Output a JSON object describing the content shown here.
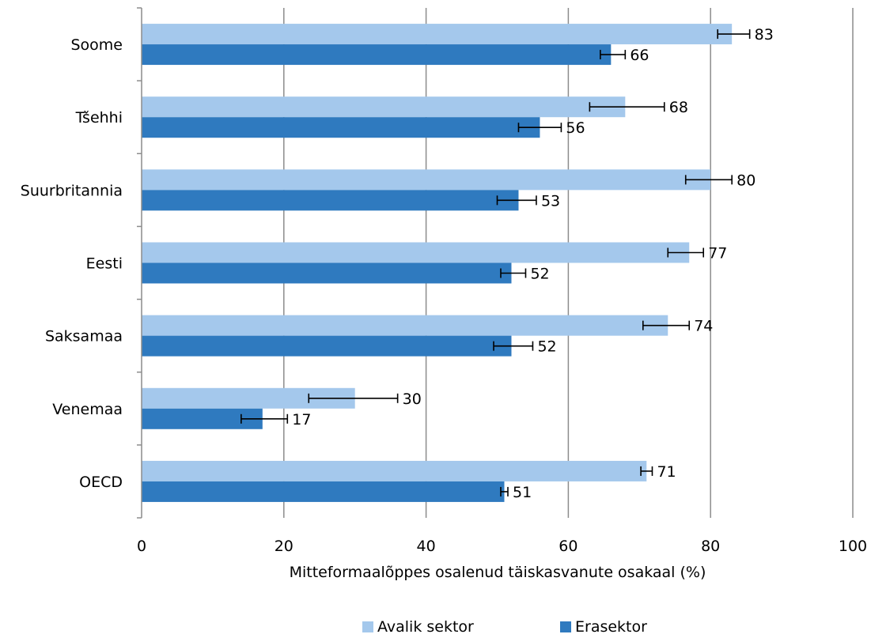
{
  "chart_data": {
    "type": "bar",
    "orientation": "horizontal",
    "title": "",
    "xlabel": "Mitteformaalõppes osalenud täiskasvanute osakaal (%)",
    "ylabel": "",
    "xlim": [
      0,
      100
    ],
    "xticks": [
      0,
      20,
      40,
      60,
      80,
      100
    ],
    "grid": true,
    "legend_position": "bottom",
    "categories": [
      "Soome",
      "Tšehhi",
      "Suurbritannia",
      "Eesti",
      "Saksamaa",
      "Venemaa",
      "OECD"
    ],
    "series": [
      {
        "name": "Avalik sektor",
        "color": "#a4c8ec",
        "values": [
          83,
          68,
          80,
          77,
          74,
          30,
          71
        ],
        "labels": [
          "83",
          "68",
          "80",
          "77",
          "74",
          "30",
          "71"
        ],
        "error_low": [
          81,
          63,
          76.5,
          74,
          70.5,
          23.5,
          70.2
        ],
        "error_high": [
          85.5,
          73.5,
          83,
          79,
          77,
          36,
          71.8
        ]
      },
      {
        "name": "Erasektor",
        "color": "#2f7abf",
        "values": [
          66,
          56,
          53,
          52,
          52,
          17,
          51
        ],
        "labels": [
          "66",
          "56",
          "53",
          "52",
          "52",
          "17",
          "51"
        ],
        "error_low": [
          64.5,
          53,
          50,
          50.5,
          49.5,
          14,
          50.5
        ],
        "error_high": [
          68,
          59,
          55.5,
          54,
          55,
          20.5,
          51.5
        ]
      }
    ]
  }
}
